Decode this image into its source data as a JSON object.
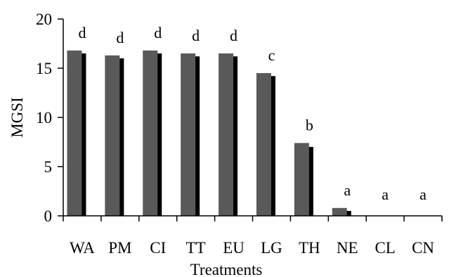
{
  "chart_data": {
    "type": "bar",
    "categories": [
      "WA",
      "PM",
      "CI",
      "TT",
      "EU",
      "LG",
      "TH",
      "NE",
      "CL",
      "CN"
    ],
    "series": [
      {
        "values": [
          16.8,
          16.3,
          16.8,
          16.5,
          16.5,
          14.5,
          7.4,
          0.8,
          0,
          0
        ],
        "color": "#595959"
      },
      {
        "values": [
          16.5,
          16.0,
          16.5,
          16.2,
          16.2,
          14.2,
          7.0,
          0.5,
          0,
          0
        ],
        "color": "#000000"
      }
    ],
    "significance_letters": [
      "d",
      "d",
      "d",
      "d",
      "d",
      "c",
      "b",
      "a",
      "a",
      "a"
    ],
    "ylabel": "MGSI",
    "xlabel": "Treatments",
    "ylim": [
      0,
      20
    ],
    "yticks": [
      0,
      5,
      10,
      15,
      20
    ],
    "grid": false,
    "legend": "none"
  }
}
